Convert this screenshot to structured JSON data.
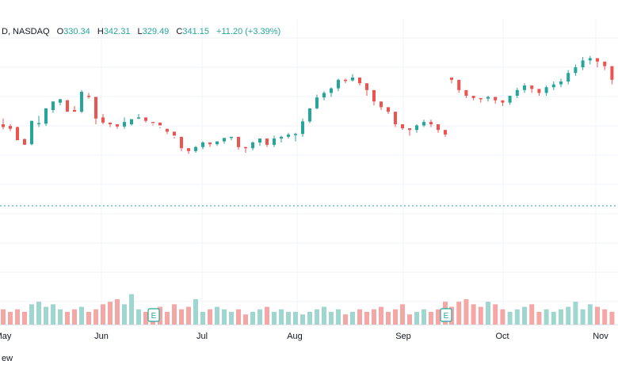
{
  "header": {
    "symbol": "D, NASDAQ",
    "open_label": "O",
    "open": "330.34",
    "high_label": "H",
    "high": "342.31",
    "low_label": "L",
    "low": "329.49",
    "close_label": "C",
    "close": "341.15",
    "change": "+11.20 (+3.39%)"
  },
  "watermark": "ew",
  "colors": {
    "up": "#26a69a",
    "down": "#ef5350",
    "up_vol": "#9fd7d0",
    "down_vol": "#f5a7a6",
    "grid": "#f0f3fa",
    "ref_line": "#26a69a"
  },
  "events": [
    {
      "label": "E",
      "month_pos": "mid-June"
    },
    {
      "label": "E",
      "month_pos": "mid-September"
    }
  ],
  "chart_data": {
    "type": "candlestick",
    "x_labels": [
      "May",
      "Jun",
      "Jul",
      "Aug",
      "Sep",
      "Oct",
      "Nov"
    ],
    "reference_line": "dotted horizontal line (current price level)",
    "grid": true,
    "note": "Prices estimated; no price scale visible in the screenshot",
    "candles": [
      [
        0,
        150,
        145,
        160,
        141
      ],
      [
        1,
        147,
        142,
        150,
        138
      ],
      [
        2,
        145,
        122,
        124,
        146
      ],
      [
        3,
        124,
        114,
        114,
        125
      ],
      [
        4,
        115,
        156,
        156,
        113
      ],
      [
        5,
        152,
        152,
        165,
        145
      ],
      [
        6,
        151,
        178,
        178,
        147
      ],
      [
        7,
        175,
        190,
        190,
        170
      ],
      [
        8,
        188,
        194,
        194,
        183
      ],
      [
        9,
        192,
        172,
        193,
        172
      ],
      [
        10,
        175,
        172,
        182,
        175
      ],
      [
        11,
        172,
        207,
        210,
        170
      ],
      [
        12,
        200,
        198,
        205,
        195
      ],
      [
        13,
        198,
        160,
        160,
        150
      ],
      [
        14,
        162,
        153,
        168,
        150
      ],
      [
        15,
        153,
        150,
        152,
        145
      ],
      [
        16,
        150,
        146,
        150,
        142
      ],
      [
        17,
        146,
        154,
        162,
        142
      ],
      [
        18,
        150,
        159,
        158,
        148
      ],
      [
        19,
        162,
        162,
        168,
        159
      ],
      [
        20,
        162,
        156,
        159,
        153
      ],
      [
        21,
        154,
        153,
        150,
        148
      ],
      [
        22,
        153,
        148,
        145,
        143
      ],
      [
        23,
        142,
        137,
        142,
        133
      ],
      [
        24,
        137,
        130,
        128,
        125
      ],
      [
        25,
        128,
        108,
        108,
        103
      ],
      [
        26,
        108,
        103,
        108,
        98
      ],
      [
        27,
        103,
        110,
        112,
        100
      ],
      [
        28,
        110,
        118,
        120,
        106
      ],
      [
        29,
        118,
        115,
        117,
        110
      ],
      [
        30,
        115,
        120,
        120,
        112
      ],
      [
        31,
        120,
        126,
        126,
        116
      ],
      [
        32,
        126,
        128,
        128,
        122
      ],
      [
        33,
        128,
        110,
        118,
        105
      ],
      [
        34,
        110,
        108,
        110,
        100
      ],
      [
        35,
        108,
        118,
        120,
        104
      ],
      [
        36,
        118,
        125,
        125,
        112
      ],
      [
        37,
        125,
        114,
        115,
        110
      ],
      [
        38,
        114,
        125,
        130,
        110
      ],
      [
        39,
        125,
        128,
        130,
        118
      ],
      [
        40,
        128,
        132,
        135,
        125
      ],
      [
        41,
        132,
        133,
        135,
        120
      ],
      [
        42,
        133,
        155,
        160,
        128
      ],
      [
        43,
        155,
        178,
        178,
        152
      ],
      [
        44,
        178,
        197,
        202,
        176
      ],
      [
        45,
        197,
        205,
        208,
        192
      ],
      [
        46,
        205,
        213,
        215,
        198
      ],
      [
        47,
        213,
        228,
        230,
        208
      ],
      [
        48,
        228,
        227,
        230,
        222
      ],
      [
        49,
        227,
        232,
        238,
        225
      ],
      [
        50,
        232,
        222,
        228,
        218
      ],
      [
        51,
        222,
        210,
        210,
        200
      ],
      [
        52,
        210,
        190,
        190,
        183
      ],
      [
        53,
        190,
        180,
        180,
        175
      ],
      [
        54,
        180,
        172,
        176,
        168
      ],
      [
        55,
        172,
        150,
        154,
        145
      ],
      [
        56,
        150,
        143,
        146,
        140
      ],
      [
        57,
        143,
        140,
        141,
        130
      ],
      [
        58,
        140,
        148,
        150,
        135
      ],
      [
        59,
        148,
        154,
        158,
        145
      ],
      [
        60,
        154,
        150,
        158,
        145
      ],
      [
        61,
        150,
        140,
        143,
        135
      ],
      [
        62,
        140,
        132,
        140,
        128
      ]
    ],
    "candles_right": [
      [
        0,
        232,
        228,
        232,
        222
      ],
      [
        1,
        228,
        210,
        215,
        205
      ],
      [
        2,
        210,
        200,
        202,
        196
      ],
      [
        3,
        200,
        196,
        198,
        192
      ],
      [
        4,
        196,
        195,
        196,
        188
      ],
      [
        5,
        195,
        198,
        200,
        190
      ],
      [
        6,
        198,
        192,
        195,
        186
      ],
      [
        7,
        192,
        188,
        192,
        182
      ],
      [
        8,
        188,
        200,
        200,
        184
      ],
      [
        9,
        200,
        210,
        214,
        196
      ],
      [
        10,
        210,
        218,
        222,
        205
      ],
      [
        11,
        218,
        212,
        215,
        205
      ],
      [
        12,
        212,
        205,
        210,
        200
      ],
      [
        13,
        205,
        215,
        218,
        200
      ],
      [
        14,
        215,
        220,
        225,
        210
      ],
      [
        15,
        220,
        225,
        230,
        215
      ],
      [
        16,
        225,
        240,
        245,
        220
      ],
      [
        17,
        240,
        250,
        255,
        235
      ],
      [
        18,
        250,
        262,
        268,
        245
      ],
      [
        19,
        262,
        266,
        270,
        255
      ],
      [
        20,
        266,
        260,
        262,
        250
      ],
      [
        21,
        260,
        252,
        256,
        245
      ],
      [
        22,
        252,
        228,
        232,
        220
      ]
    ],
    "volume_left": [
      6,
      5,
      6,
      5,
      8,
      9,
      7,
      8,
      6,
      5,
      6,
      7,
      5,
      6,
      8,
      9,
      10,
      8,
      12,
      6,
      5,
      6,
      7,
      5,
      8,
      6,
      7,
      10,
      5,
      6,
      7,
      6,
      5,
      6,
      4,
      5,
      6,
      7,
      5,
      6,
      5,
      5,
      4,
      5,
      6,
      7,
      5,
      6,
      4,
      5,
      6,
      5,
      6,
      7,
      5,
      6,
      8,
      4,
      5,
      6,
      5,
      6,
      9
    ],
    "volume_right": [
      7,
      9,
      10,
      8,
      7,
      9,
      8,
      6,
      5,
      6,
      7,
      8,
      5,
      6,
      5,
      6,
      7,
      9,
      6,
      8,
      7,
      6,
      5
    ]
  }
}
